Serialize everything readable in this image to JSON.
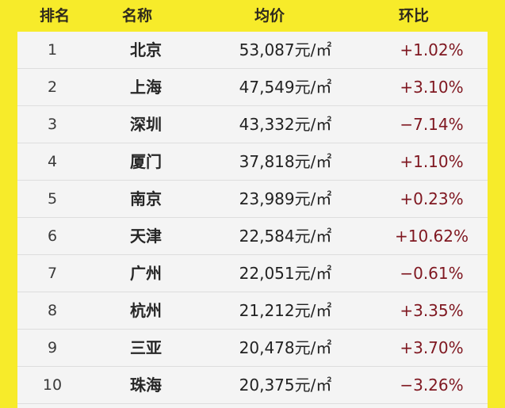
{
  "header": {
    "rank": "排名",
    "city": "名称",
    "avg_price": "均价",
    "change": "环比"
  },
  "rows": [
    {
      "rank": "1",
      "city": "北京",
      "price": "53,087元/㎡",
      "change": "+1.02%"
    },
    {
      "rank": "2",
      "city": "上海",
      "price": "47,549元/㎡",
      "change": "+3.10%"
    },
    {
      "rank": "3",
      "city": "深圳",
      "price": "43,332元/㎡",
      "change": "−7.14%"
    },
    {
      "rank": "4",
      "city": "厦门",
      "price": "37,818元/㎡",
      "change": "+1.10%"
    },
    {
      "rank": "5",
      "city": "南京",
      "price": "23,989元/㎡",
      "change": "+0.23%"
    },
    {
      "rank": "6",
      "city": "天津",
      "price": "22,584元/㎡",
      "change": "+10.62%"
    },
    {
      "rank": "7",
      "city": "广州",
      "price": "22,051元/㎡",
      "change": "−0.61%"
    },
    {
      "rank": "8",
      "city": "杭州",
      "price": "21,212元/㎡",
      "change": "+3.35%"
    },
    {
      "rank": "9",
      "city": "三亚",
      "price": "20,478元/㎡",
      "change": "+3.70%"
    },
    {
      "rank": "10",
      "city": "珠海",
      "price": "20,375元/㎡",
      "change": "−3.26%"
    }
  ],
  "colors": {
    "background": "#f7eb2a",
    "table_panel": "#f4f4f4",
    "header_text": "#2f2a1d",
    "change_text": "#7f1720"
  }
}
